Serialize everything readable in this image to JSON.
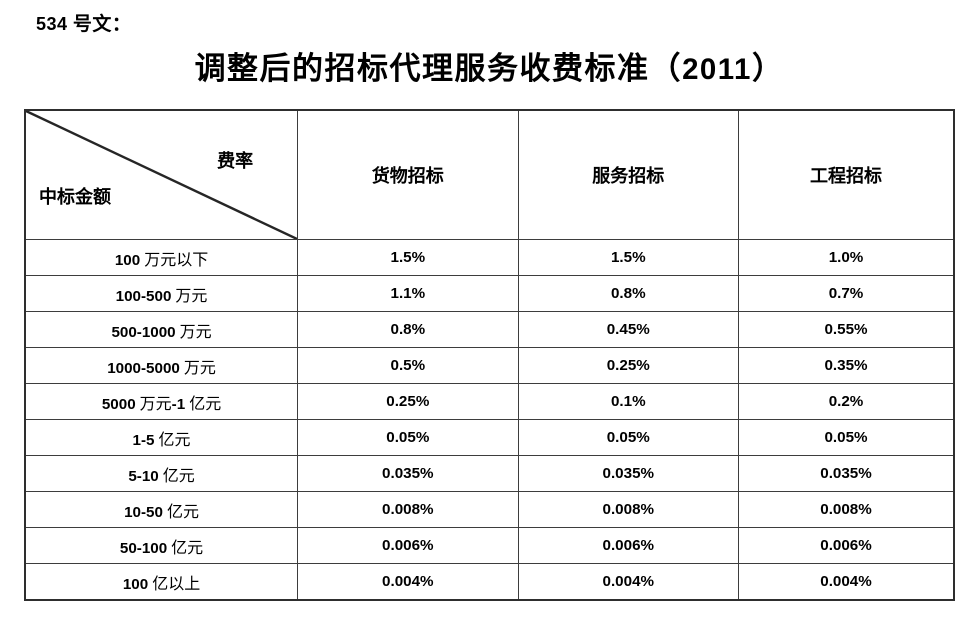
{
  "doc": {
    "ref_label": "534 号文：",
    "title": "调整后的招标代理服务收费标准（2011）"
  },
  "table": {
    "corner": {
      "rate_label": "费率",
      "amount_label": "中标金额"
    },
    "columns": [
      "货物招标",
      "服务招标",
      "工程招标"
    ],
    "rows": [
      [
        "100 万元以下",
        "1.5%",
        "1.5%",
        "1.0%"
      ],
      [
        "100-500 万元",
        "1.1%",
        "0.8%",
        "0.7%"
      ],
      [
        "500-1000 万元",
        "0.8%",
        "0.45%",
        "0.55%"
      ],
      [
        "1000-5000 万元",
        "0.5%",
        "0.25%",
        "0.35%"
      ],
      [
        "5000 万元-1 亿元",
        "0.25%",
        "0.1%",
        "0.2%"
      ],
      [
        "1-5 亿元",
        "0.05%",
        "0.05%",
        "0.05%"
      ],
      [
        "5-10 亿元",
        "0.035%",
        "0.035%",
        "0.035%"
      ],
      [
        "10-50 亿元",
        "0.008%",
        "0.008%",
        "0.008%"
      ],
      [
        "50-100 亿元",
        "0.006%",
        "0.006%",
        "0.006%"
      ],
      [
        "100 亿以上",
        "0.004%",
        "0.004%",
        "0.004%"
      ]
    ]
  },
  "colors": {
    "text": "#000000",
    "border": "#3d3d3d",
    "background": "#ffffff"
  }
}
